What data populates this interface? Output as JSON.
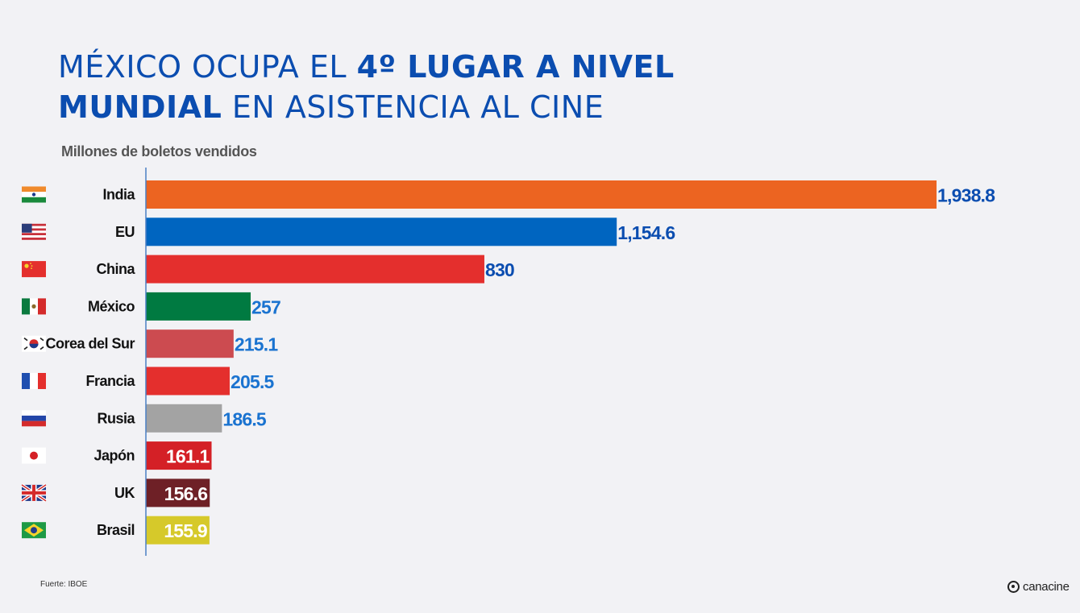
{
  "title": {
    "line1_regular": "MÉXICO OCUPA EL ",
    "line1_bold": "4º LUGAR A NIVEL",
    "line2_bold": "MUNDIAL",
    "line2_regular": " EN ASISTENCIA AL CINE"
  },
  "source": "Fuerte: IBOE",
  "logo": "canacine",
  "chart_data": {
    "type": "bar",
    "orientation": "horizontal",
    "title": "MÉXICO OCUPA EL 4º LUGAR A NIVEL MUNDIAL EN ASISTENCIA AL CINE",
    "subtitle": "Millones de boletos vendidos",
    "categories": [
      "India",
      "EU",
      "China",
      "México",
      "Corea del Sur",
      "Francia",
      "Rusia",
      "Japón",
      "UK",
      "Brasil"
    ],
    "values": [
      1938.8,
      1154.6,
      830,
      257,
      215.1,
      205.5,
      186.5,
      161.1,
      156.6,
      155.9
    ],
    "value_labels": [
      "1,938.8",
      "1,154.6",
      "830",
      "257",
      "215.1",
      "205.5",
      "186.5",
      "161.1",
      "156.6",
      "155.9"
    ],
    "bar_colors": [
      "#ec6421",
      "#0065c0",
      "#e42f2d",
      "#007a41",
      "#cc4b50",
      "#e42f2d",
      "#a3a3a3",
      "#d42026",
      "#6e2026",
      "#d6c92a"
    ],
    "label_colors": [
      "#0b4db0",
      "#0b4db0",
      "#0b4db0",
      "#1a73d0",
      "#1a73d0",
      "#1a73d0",
      "#1a73d0",
      "#ffffff",
      "#ffffff",
      "#ffffff"
    ],
    "label_inside": [
      false,
      false,
      false,
      false,
      false,
      false,
      false,
      true,
      true,
      true
    ],
    "flag_icons": [
      "india-flag-icon",
      "usa-flag-icon",
      "china-flag-icon",
      "mexico-flag-icon",
      "south-korea-flag-icon",
      "france-flag-icon",
      "russia-flag-icon",
      "japan-flag-icon",
      "uk-flag-icon",
      "brazil-flag-icon"
    ],
    "xlim": [
      0,
      1938.8
    ],
    "grid": false,
    "legend": "none"
  }
}
